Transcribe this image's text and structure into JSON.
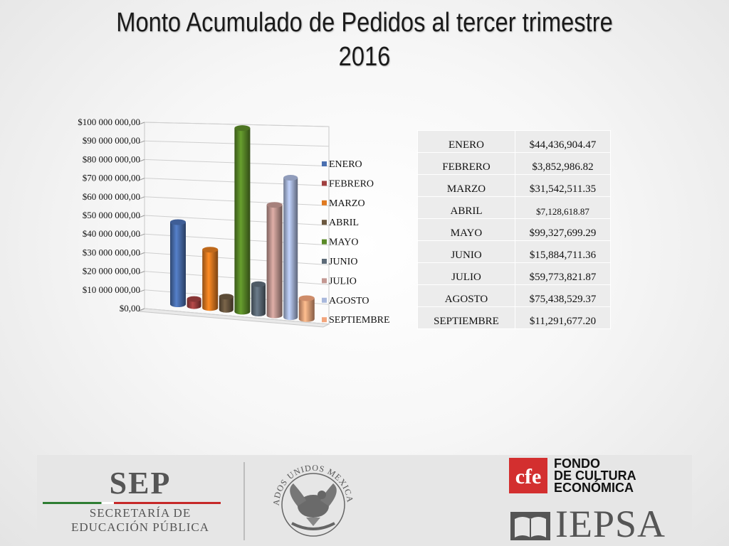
{
  "title": {
    "line1": "Monto Acumulado de Pedidos  al tercer trimestre",
    "line2": "2016"
  },
  "chart_data": {
    "type": "bar",
    "style": "3d-cylinder",
    "categories": [
      "ENERO",
      "FEBRERO",
      "MARZO",
      "ABRIL",
      "MAYO",
      "JUNIO",
      "JULIO",
      "AGOSTO",
      "SEPTIEMBRE"
    ],
    "values": [
      44436904.47,
      3852986.82,
      31542511.35,
      7128618.87,
      99327699.29,
      15884711.36,
      59773821.87,
      75438529.37,
      11291677.2
    ],
    "colors": [
      "#4a6fb0",
      "#a04040",
      "#e07a20",
      "#6b5840",
      "#5a8a28",
      "#5d6b78",
      "#c39892",
      "#a9b8dc",
      "#f2a57c"
    ],
    "ylim": [
      0,
      100000000
    ],
    "yticks": [
      0,
      10000000,
      20000000,
      30000000,
      40000000,
      50000000,
      60000000,
      70000000,
      80000000,
      90000000,
      100000000
    ],
    "ytick_labels": [
      "$0,00",
      "$10 000 000,00",
      "$20 000 000,00",
      "$30 000 000,00",
      "$40 000 000,00",
      "$50 000 000,00",
      "$60 000 000,00",
      "$70 000 000,00",
      "$80 000 000,00",
      "$90 000 000,00",
      "$100 000 000,00"
    ],
    "legend_position": "right",
    "grid": true
  },
  "table": {
    "rows": [
      {
        "month": "ENERO",
        "amount": "$44,436,904.47"
      },
      {
        "month": "FEBRERO",
        "amount": "$3,852,986.82"
      },
      {
        "month": "MARZO",
        "amount": "$31,542,511.35"
      },
      {
        "month": "ABRIL",
        "amount": "$7,128,618.87"
      },
      {
        "month": "MAYO",
        "amount": "$99,327,699.29"
      },
      {
        "month": "JUNIO",
        "amount": "$15,884,711.36"
      },
      {
        "month": "JULIO",
        "amount": "$59,773,821.87"
      },
      {
        "month": "AGOSTO",
        "amount": "$75,438,529.37"
      },
      {
        "month": "SEPTIEMBRE",
        "amount": "$11,291,677.20"
      }
    ]
  },
  "footer": {
    "sep": {
      "logo": "SEP",
      "line1": "SECRETARÍA DE",
      "line2": "EDUCACIÓN PÚBLICA"
    },
    "seal": {
      "icon": "national-seal-icon",
      "text": "ESTADOS UNIDOS MEXICANOS"
    },
    "fce": {
      "mark": "cfe",
      "line1": "FONDO",
      "line2": "DE CULTURA",
      "line3": "ECONÓMICA"
    },
    "iepsa": {
      "icon": "open-book-icon",
      "text": "IEPSA"
    }
  }
}
